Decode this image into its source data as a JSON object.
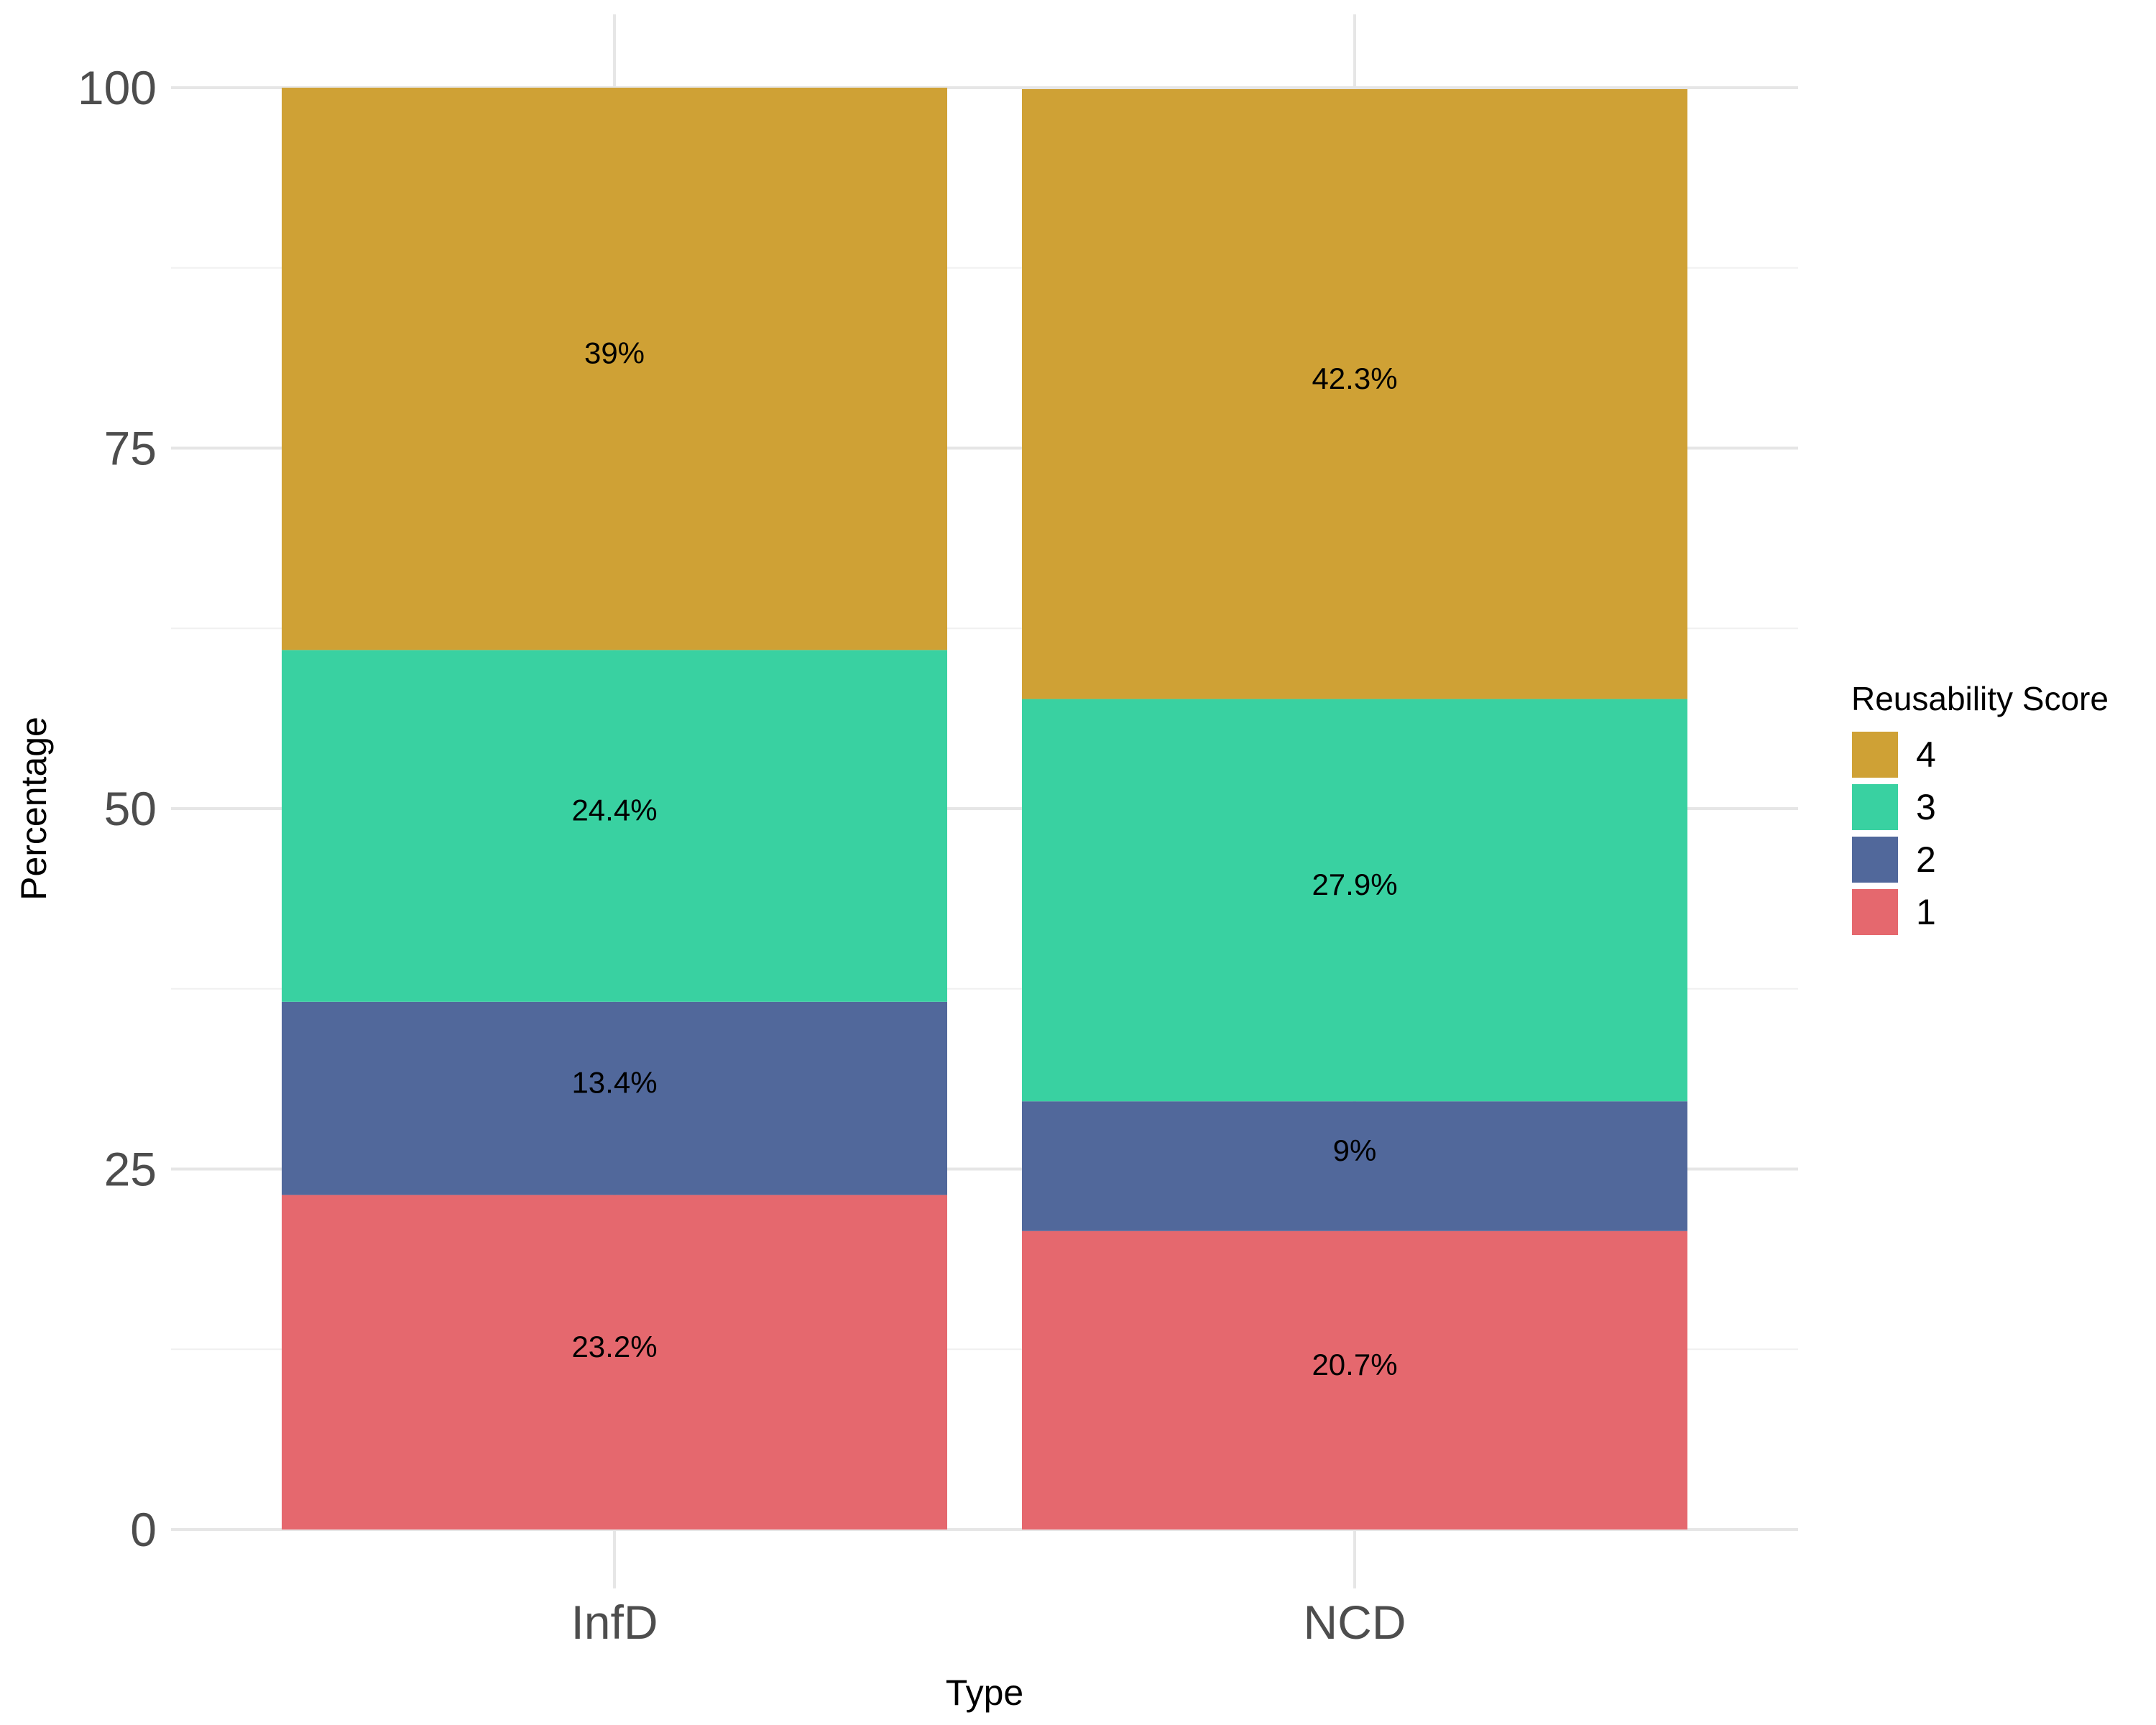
{
  "chart_data": {
    "type": "bar",
    "stacked": true,
    "categories": [
      "InfD",
      "NCD"
    ],
    "series": [
      {
        "name": "1",
        "values": [
          23.2,
          20.7
        ],
        "labels": [
          "23.2%",
          "20.7%"
        ],
        "color": "#E5686E"
      },
      {
        "name": "2",
        "values": [
          13.4,
          9.0
        ],
        "labels": [
          "13.4%",
          "9%"
        ],
        "color": "#51689B"
      },
      {
        "name": "3",
        "values": [
          24.4,
          27.9
        ],
        "labels": [
          "24.4%",
          "27.9%"
        ],
        "color": "#39D1A1"
      },
      {
        "name": "4",
        "values": [
          39.0,
          42.3
        ],
        "labels": [
          "39%",
          "42.3%"
        ],
        "color": "#CFA135"
      }
    ],
    "legend_order": [
      "4",
      "3",
      "2",
      "1"
    ],
    "xlabel": "Type",
    "ylabel": "Percentage",
    "legend_title": "Reusability Score",
    "legend_position": "right",
    "ylim": [
      0,
      100
    ],
    "yticks": [
      0,
      25,
      50,
      75,
      100
    ],
    "grid": true
  }
}
